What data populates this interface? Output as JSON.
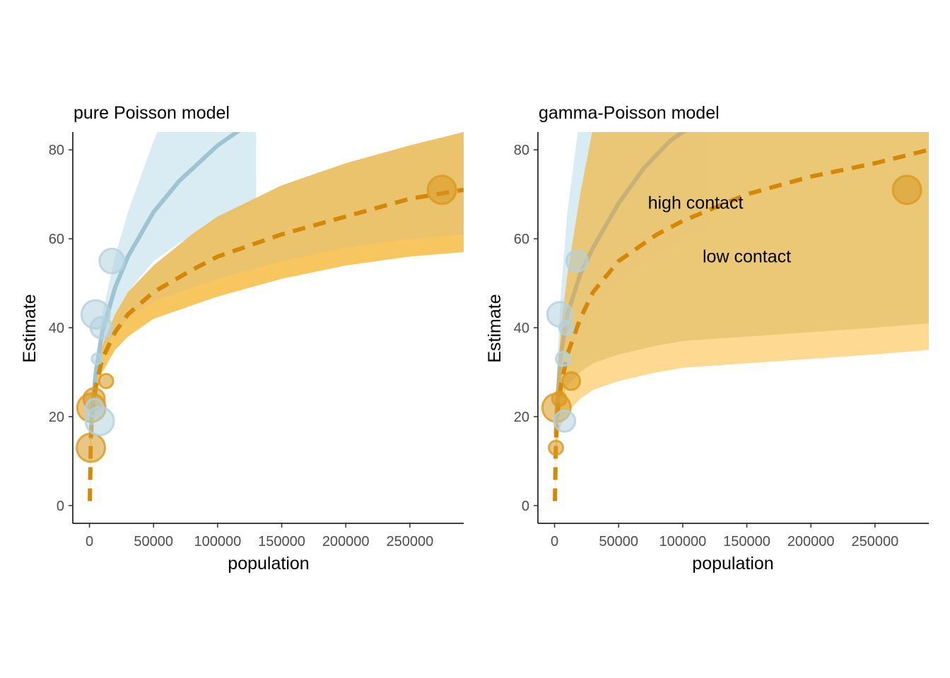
{
  "chart_data": [
    {
      "type": "line",
      "title": "pure Poisson model",
      "xlabel": "population",
      "ylabel": "Estimate",
      "xlim": [
        -13000,
        292000
      ],
      "ylim": [
        -4,
        84
      ],
      "x_ticks": [
        0,
        50000,
        100000,
        150000,
        200000,
        250000
      ],
      "y_ticks": [
        0,
        20,
        40,
        60,
        80
      ],
      "grid": false,
      "annotations": [],
      "series": [
        {
          "role": "high",
          "style": "solid",
          "color": "#9ec4d2",
          "band_color": "#d6eaf2",
          "x": [
            1000,
            2000,
            5000,
            10000,
            20000,
            30000,
            50000,
            70000,
            100000,
            120000,
            130000
          ],
          "y": [
            15,
            21,
            30,
            39,
            49,
            56,
            66,
            73,
            81,
            85,
            87
          ],
          "lower": [
            13,
            19,
            27,
            35,
            43,
            48,
            55,
            59,
            64,
            67,
            68
          ],
          "upper": [
            17,
            23,
            33,
            43,
            56,
            66,
            82,
            95,
            110,
            120,
            125
          ]
        },
        {
          "role": "low",
          "style": "dashed",
          "color": "#d4880a",
          "band_color": "#f5b836",
          "x": [
            300,
            1000,
            2000,
            5000,
            10000,
            20000,
            30000,
            50000,
            80000,
            100000,
            150000,
            200000,
            250000,
            292000
          ],
          "y": [
            1,
            14,
            20,
            27,
            33,
            39,
            43,
            48,
            53,
            56,
            61,
            65,
            69,
            71
          ],
          "lower": [
            0,
            12,
            18,
            24,
            30,
            35,
            38,
            42,
            45,
            47,
            51,
            54,
            56,
            57
          ],
          "upper": [
            2,
            16,
            22,
            30,
            36,
            43,
            48,
            54,
            61,
            65,
            72,
            77,
            81,
            84
          ]
        }
      ],
      "points": [
        {
          "x": 1100,
          "y": 13,
          "size": 3,
          "group": "low"
        },
        {
          "x": 1500,
          "y": 22,
          "size": 3,
          "group": "low"
        },
        {
          "x": 3600,
          "y": 24,
          "size": 2,
          "group": "low"
        },
        {
          "x": 4800,
          "y": 43,
          "size": 3,
          "group": "high"
        },
        {
          "x": 5900,
          "y": 33,
          "size": 0.5,
          "group": "high"
        },
        {
          "x": 8000,
          "y": 19,
          "size": 3,
          "group": "high"
        },
        {
          "x": 9200,
          "y": 40,
          "size": 2,
          "group": "high"
        },
        {
          "x": 13000,
          "y": 28,
          "size": 1,
          "group": "low"
        },
        {
          "x": 17500,
          "y": 55,
          "size": 2.5,
          "group": "high"
        },
        {
          "x": 275000,
          "y": 71,
          "size": 3,
          "group": "low"
        },
        {
          "x": 4000,
          "y": 22,
          "size": 1.5,
          "group": "high"
        }
      ]
    },
    {
      "type": "line",
      "title": "gamma-Poisson model",
      "xlabel": "population",
      "ylabel": "Estimate",
      "xlim": [
        -13000,
        292000
      ],
      "ylim": [
        -4,
        84
      ],
      "x_ticks": [
        0,
        50000,
        100000,
        150000,
        200000,
        250000
      ],
      "y_ticks": [
        0,
        20,
        40,
        60,
        80
      ],
      "grid": false,
      "annotations": [
        {
          "text": "high contact",
          "x": 110000,
          "y": 68
        },
        {
          "text": "low contact",
          "x": 150000,
          "y": 56
        }
      ],
      "series": [
        {
          "role": "high",
          "style": "solid",
          "color": "#c9b176",
          "band_color": "#d6eaf2",
          "x": [
            1000,
            2000,
            5000,
            10000,
            20000,
            30000,
            50000,
            70000,
            90000,
            110000,
            120000
          ],
          "y": [
            16,
            23,
            34,
            43,
            52,
            58,
            68,
            76,
            82,
            86,
            88
          ],
          "lower": [
            10,
            17,
            26,
            33,
            39,
            44,
            50,
            55,
            58,
            61,
            62
          ],
          "upper": [
            22,
            32,
            48,
            66,
            88,
            105,
            130,
            150,
            165,
            178,
            185
          ]
        },
        {
          "role": "low",
          "style": "dashed",
          "color": "#d4880a",
          "band_color": "#fed27e",
          "x": [
            300,
            1000,
            2000,
            5000,
            10000,
            20000,
            30000,
            50000,
            80000,
            100000,
            150000,
            200000,
            250000,
            292000
          ],
          "y": [
            1,
            14,
            20,
            27,
            34,
            42,
            48,
            55,
            61,
            64,
            70,
            74,
            77,
            80
          ],
          "lower": [
            0,
            10,
            14,
            18,
            21,
            24,
            26,
            28,
            30,
            31,
            32,
            33,
            34,
            35
          ],
          "upper": [
            2,
            20,
            28,
            40,
            52,
            70,
            85,
            100,
            115,
            120,
            130,
            135,
            140,
            145
          ]
        }
      ],
      "points": [
        {
          "x": 1100,
          "y": 13,
          "size": 1,
          "group": "low"
        },
        {
          "x": 1500,
          "y": 22,
          "size": 3,
          "group": "low"
        },
        {
          "x": 3600,
          "y": 24,
          "size": 1,
          "group": "low"
        },
        {
          "x": 4000,
          "y": 43,
          "size": 2.5,
          "group": "high"
        },
        {
          "x": 6600,
          "y": 33,
          "size": 1,
          "group": "high"
        },
        {
          "x": 7800,
          "y": 19,
          "size": 2,
          "group": "high"
        },
        {
          "x": 9200,
          "y": 40,
          "size": 1,
          "group": "high"
        },
        {
          "x": 13000,
          "y": 28,
          "size": 1.5,
          "group": "low"
        },
        {
          "x": 17500,
          "y": 55,
          "size": 2,
          "group": "high"
        },
        {
          "x": 275000,
          "y": 71,
          "size": 3,
          "group": "low"
        }
      ]
    }
  ]
}
